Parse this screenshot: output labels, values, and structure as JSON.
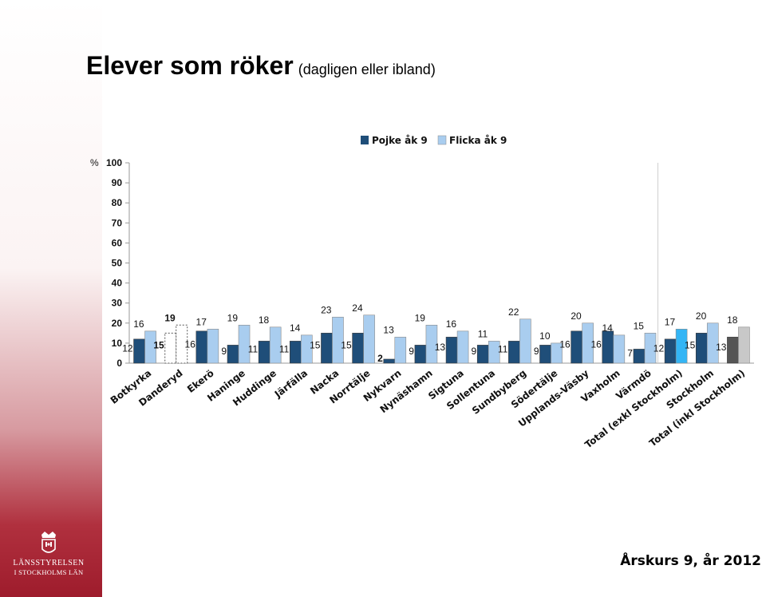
{
  "title": "Elever som röker",
  "subtitle": "(dagligen eller ibland)",
  "footer": "Årskurs 9, år 2012",
  "logo": {
    "line1": "LÄNSSTYRELSEN",
    "line2": "I STOCKHOLMS LÄN",
    "icon": "crown-emblem-icon"
  },
  "colors": {
    "pojke": "#1f4e79",
    "flicka": "#a9cdef",
    "total_excl_pojke": "#1f4e79",
    "total_excl_flicka": "#33b5f5",
    "total_incl_pojke": "#555555",
    "total_incl_flicka": "#c8c8c8",
    "band_bottom": "#9e1c2c"
  },
  "chart_data": {
    "type": "bar",
    "ylabel": "%",
    "ylim": [
      0,
      100
    ],
    "yticks": [
      0,
      10,
      20,
      30,
      40,
      50,
      60,
      70,
      80,
      90,
      100
    ],
    "legend_position": "top",
    "categories": [
      "Botkyrka",
      "Danderyd",
      "Ekerö",
      "Haninge",
      "Huddinge",
      "Järfälla",
      "Nacka",
      "Norrtälje",
      "Nykvarn",
      "Nynäshamn",
      "Sigtuna",
      "Sollentuna",
      "Sundbyberg",
      "Södertälje",
      "Upplands-Väsby",
      "Vaxholm",
      "Värmdö",
      "Total (exkl Stockholm)",
      "Stockholm",
      "Total (inkl Stockholm)"
    ],
    "series": [
      {
        "name": "Pojke åk 9",
        "values": [
          12,
          15,
          16,
          9,
          11,
          11,
          15,
          15,
          2,
          9,
          13,
          9,
          11,
          9,
          16,
          16,
          7,
          12,
          15,
          13
        ]
      },
      {
        "name": "Flicka åk 9",
        "values": [
          16,
          19,
          17,
          19,
          18,
          14,
          23,
          24,
          13,
          19,
          16,
          11,
          22,
          10,
          20,
          14,
          15,
          17,
          20,
          18
        ]
      }
    ],
    "value_labels": {
      "pojke": [
        "12",
        "15",
        "16",
        "9",
        "11",
        "11",
        "15",
        "15",
        "2",
        "9",
        "13",
        "9",
        "11",
        "9",
        "16",
        "16",
        "7",
        "12",
        "15",
        "13"
      ],
      "flicka": [
        "16",
        "19",
        "17",
        "19",
        "18",
        "14",
        "23",
        "24",
        "13",
        "19",
        "16",
        "11",
        "22",
        "10",
        "20",
        "14",
        "15",
        "17",
        "20",
        "18"
      ]
    },
    "dashed_categories": [
      "Danderyd"
    ]
  }
}
